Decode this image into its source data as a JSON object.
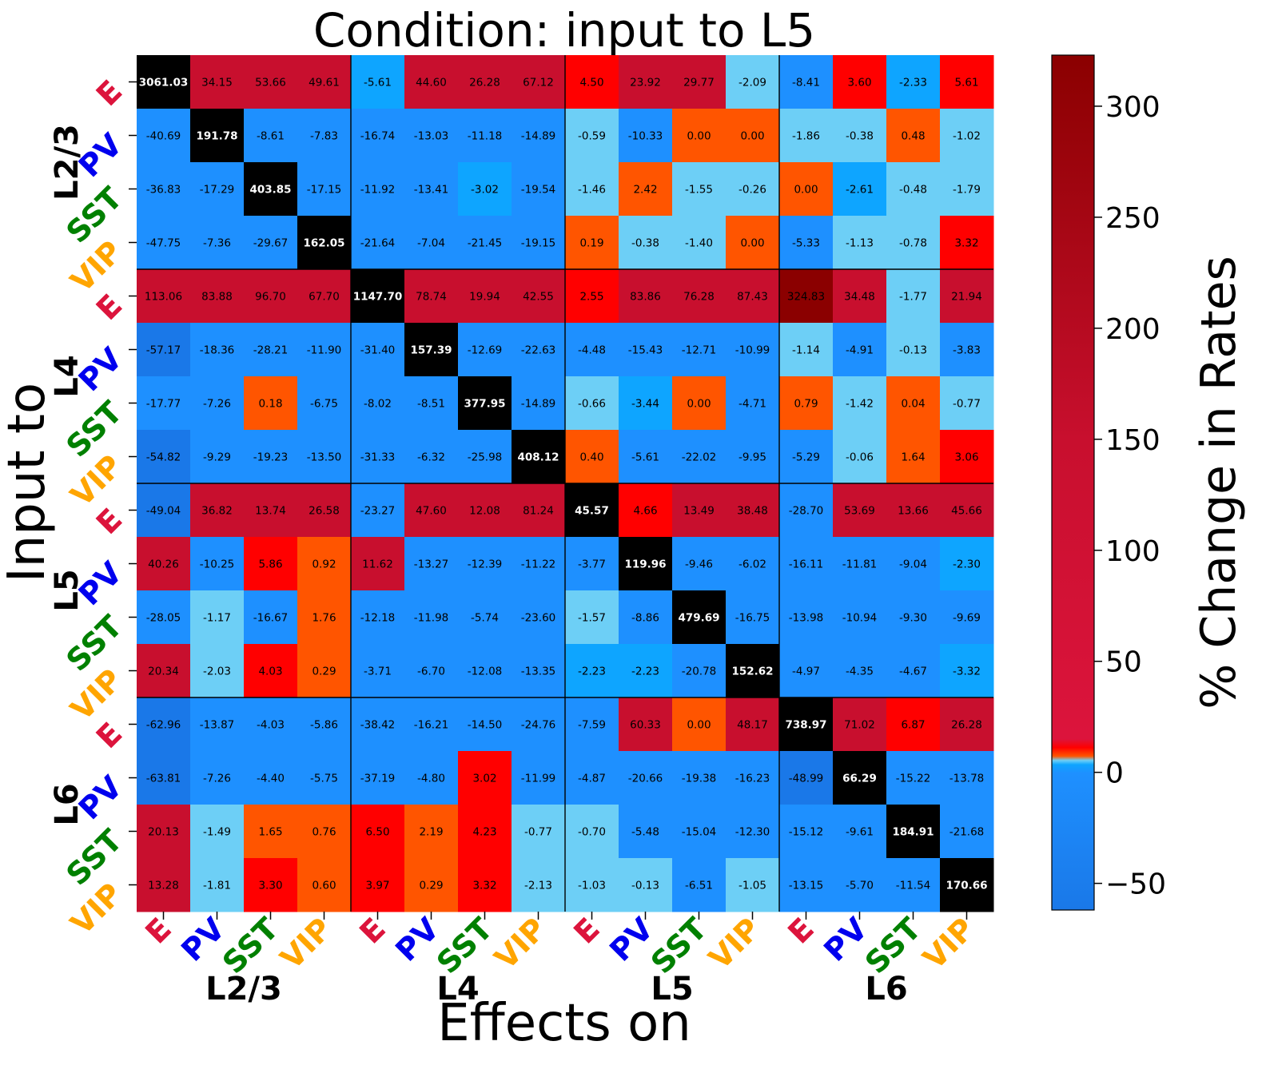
{
  "chart_data": {
    "type": "heatmap",
    "title": "Condition: input to L5",
    "xlabel": "Effects on",
    "ylabel": "Input to",
    "colorbar_label": "% Change in Rates",
    "colorbar_ticks": [
      "300",
      "250",
      "200",
      "150",
      "100",
      "50",
      "0",
      "−50"
    ],
    "colorbar_range": [
      -62,
      323
    ],
    "layers": [
      "L2/3",
      "L4",
      "L5",
      "L6"
    ],
    "populations": [
      "E",
      "PV",
      "SST",
      "VIP"
    ],
    "population_colors": {
      "E": "#dc143c",
      "PV": "#0000ee",
      "SST": "#008000",
      "VIP": "#ffa500"
    },
    "colors": {
      "diagonal": "#000000",
      "strong_positive": "#c80f2e",
      "very_strong_positive": "#8b0000",
      "medium_positive": "#ff0000",
      "small_positive": "#ff5500",
      "small_negative": "#6dcff6",
      "medium_negative": "#0ea5ff",
      "strong_negative": "#1e90ff",
      "very_strong_negative": "#1a78e8"
    },
    "values": [
      [
        "3061.03",
        "34.15",
        "53.66",
        "49.61",
        "-5.61",
        "44.60",
        "26.28",
        "67.12",
        "4.50",
        "23.92",
        "29.77",
        "-2.09",
        "-8.41",
        "3.60",
        "-2.33",
        "5.61"
      ],
      [
        "-40.69",
        "191.78",
        "-8.61",
        "-7.83",
        "-16.74",
        "-13.03",
        "-11.18",
        "-14.89",
        "-0.59",
        "-10.33",
        "0.00",
        "0.00",
        "-1.86",
        "-0.38",
        "0.48",
        "-1.02"
      ],
      [
        "-36.83",
        "-17.29",
        "403.85",
        "-17.15",
        "-11.92",
        "-13.41",
        "-3.02",
        "-19.54",
        "-1.46",
        "2.42",
        "-1.55",
        "-0.26",
        "0.00",
        "-2.61",
        "-0.48",
        "-1.79"
      ],
      [
        "-47.75",
        "-7.36",
        "-29.67",
        "162.05",
        "-21.64",
        "-7.04",
        "-21.45",
        "-19.15",
        "0.19",
        "-0.38",
        "-1.40",
        "0.00",
        "-5.33",
        "-1.13",
        "-0.78",
        "3.32"
      ],
      [
        "113.06",
        "83.88",
        "96.70",
        "67.70",
        "1147.70",
        "78.74",
        "19.94",
        "42.55",
        "2.55",
        "83.86",
        "76.28",
        "87.43",
        "324.83",
        "34.48",
        "-1.77",
        "21.94"
      ],
      [
        "-57.17",
        "-18.36",
        "-28.21",
        "-11.90",
        "-31.40",
        "157.39",
        "-12.69",
        "-22.63",
        "-4.48",
        "-15.43",
        "-12.71",
        "-10.99",
        "-1.14",
        "-4.91",
        "-0.13",
        "-3.83"
      ],
      [
        "-17.77",
        "-7.26",
        "0.18",
        "-6.75",
        "-8.02",
        "-8.51",
        "377.95",
        "-14.89",
        "-0.66",
        "-3.44",
        "0.00",
        "-4.71",
        "0.79",
        "-1.42",
        "0.04",
        "-0.77"
      ],
      [
        "-54.82",
        "-9.29",
        "-19.23",
        "-13.50",
        "-31.33",
        "-6.32",
        "-25.98",
        "408.12",
        "0.40",
        "-5.61",
        "-22.02",
        "-9.95",
        "-5.29",
        "-0.06",
        "1.64",
        "3.06"
      ],
      [
        "-49.04",
        "36.82",
        "13.74",
        "26.58",
        "-23.27",
        "47.60",
        "12.08",
        "81.24",
        "45.57",
        "4.66",
        "13.49",
        "38.48",
        "-28.70",
        "53.69",
        "13.66",
        "45.66"
      ],
      [
        "40.26",
        "-10.25",
        "5.86",
        "0.92",
        "11.62",
        "-13.27",
        "-12.39",
        "-11.22",
        "-3.77",
        "119.96",
        "-9.46",
        "-6.02",
        "-16.11",
        "-11.81",
        "-9.04",
        "-2.30"
      ],
      [
        "-28.05",
        "-1.17",
        "-16.67",
        "1.76",
        "-12.18",
        "-11.98",
        "-5.74",
        "-23.60",
        "-1.57",
        "-8.86",
        "479.69",
        "-16.75",
        "-13.98",
        "-10.94",
        "-9.30",
        "-9.69"
      ],
      [
        "20.34",
        "-2.03",
        "4.03",
        "0.29",
        "-3.71",
        "-6.70",
        "-12.08",
        "-13.35",
        "-2.23",
        "-2.23",
        "-20.78",
        "152.62",
        "-4.97",
        "-4.35",
        "-4.67",
        "-3.32"
      ],
      [
        "-62.96",
        "-13.87",
        "-4.03",
        "-5.86",
        "-38.42",
        "-16.21",
        "-14.50",
        "-24.76",
        "-7.59",
        "60.33",
        "0.00",
        "48.17",
        "738.97",
        "71.02",
        "6.87",
        "26.28"
      ],
      [
        "-63.81",
        "-7.26",
        "-4.40",
        "-5.75",
        "-37.19",
        "-4.80",
        "3.02",
        "-11.99",
        "-4.87",
        "-20.66",
        "-19.38",
        "-16.23",
        "-48.99",
        "66.29",
        "-15.22",
        "-13.78"
      ],
      [
        "20.13",
        "-1.49",
        "1.65",
        "0.76",
        "6.50",
        "2.19",
        "4.23",
        "-0.77",
        "-0.70",
        "-5.48",
        "-15.04",
        "-12.30",
        "-15.12",
        "-9.61",
        "184.91",
        "-21.68"
      ],
      [
        "13.28",
        "-1.81",
        "3.30",
        "0.60",
        "3.97",
        "0.29",
        "3.32",
        "-2.13",
        "-1.03",
        "-0.13",
        "-6.51",
        "-1.05",
        "-13.15",
        "-5.70",
        "-11.54",
        "170.66"
      ]
    ],
    "special_colors": {
      "0-4": "medium_negative",
      "1-8": "small_negative",
      "1-10": "small_positive",
      "1-11": "small_positive",
      "2-6": "medium_negative",
      "2-12": "small_positive",
      "3-9": "small_negative",
      "3-11": "small_positive",
      "6-10": "small_positive",
      "10-1": "small_negative",
      "12-10": "small_positive"
    }
  }
}
